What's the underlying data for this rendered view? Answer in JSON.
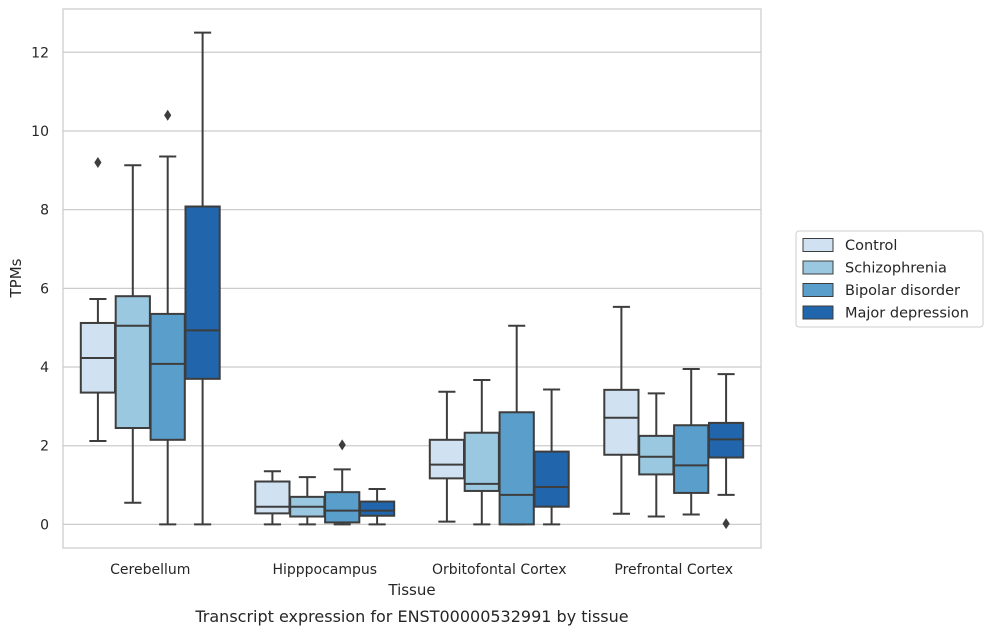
{
  "caption": "Transcript expression for ENST00000532991 by tissue",
  "chart_data": {
    "type": "boxplot",
    "xlabel": "Tissue",
    "ylabel": "TPMs",
    "ylim": [
      -0.6,
      13.1
    ],
    "yticks": [
      0,
      2,
      4,
      6,
      8,
      10,
      12
    ],
    "grid": "horizontal",
    "legend_position": "right",
    "categories": [
      "Cerebellum",
      "Hipppocampus",
      "Orbitofontal Cortex",
      "Prefrontal Cortex"
    ],
    "series": [
      {
        "name": "Control",
        "color": "#d0e1f2",
        "boxes": [
          {
            "whislo": 2.12,
            "q1": 3.35,
            "med": 4.23,
            "q3": 5.12,
            "whishi": 5.73,
            "fliers": [
              9.2
            ]
          },
          {
            "whislo": 0.0,
            "q1": 0.28,
            "med": 0.45,
            "q3": 1.09,
            "whishi": 1.35,
            "fliers": []
          },
          {
            "whislo": 0.07,
            "q1": 1.17,
            "med": 1.52,
            "q3": 2.15,
            "whishi": 3.37,
            "fliers": []
          },
          {
            "whislo": 0.27,
            "q1": 1.77,
            "med": 2.71,
            "q3": 3.42,
            "whishi": 5.53,
            "fliers": []
          }
        ]
      },
      {
        "name": "Schizophrenia",
        "color": "#9ac8e0",
        "boxes": [
          {
            "whislo": 0.55,
            "q1": 2.45,
            "med": 5.05,
            "q3": 5.8,
            "whishi": 9.13,
            "fliers": []
          },
          {
            "whislo": 0.0,
            "q1": 0.2,
            "med": 0.45,
            "q3": 0.7,
            "whishi": 1.2,
            "fliers": []
          },
          {
            "whislo": 0.0,
            "q1": 0.85,
            "med": 1.03,
            "q3": 2.33,
            "whishi": 3.67,
            "fliers": []
          },
          {
            "whislo": 0.2,
            "q1": 1.27,
            "med": 1.72,
            "q3": 2.25,
            "whishi": 3.33,
            "fliers": []
          }
        ]
      },
      {
        "name": "Bipolar disorder",
        "color": "#5a9ecc",
        "boxes": [
          {
            "whislo": 0.0,
            "q1": 2.15,
            "med": 4.08,
            "q3": 5.35,
            "whishi": 9.35,
            "fliers": [
              10.4
            ]
          },
          {
            "whislo": 0.0,
            "q1": 0.05,
            "med": 0.35,
            "q3": 0.82,
            "whishi": 1.4,
            "fliers": [
              2.02
            ]
          },
          {
            "whislo": 0.0,
            "q1": 0.0,
            "med": 0.75,
            "q3": 2.85,
            "whishi": 5.05,
            "fliers": []
          },
          {
            "whislo": 0.25,
            "q1": 0.8,
            "med": 1.5,
            "q3": 2.52,
            "whishi": 3.95,
            "fliers": []
          }
        ]
      },
      {
        "name": "Major depression",
        "color": "#2166ac",
        "boxes": [
          {
            "whislo": 0.0,
            "q1": 3.7,
            "med": 4.93,
            "q3": 8.08,
            "whishi": 12.5,
            "fliers": []
          },
          {
            "whislo": 0.0,
            "q1": 0.22,
            "med": 0.35,
            "q3": 0.58,
            "whishi": 0.9,
            "fliers": []
          },
          {
            "whislo": 0.0,
            "q1": 0.45,
            "med": 0.95,
            "q3": 1.85,
            "whishi": 3.43,
            "fliers": []
          },
          {
            "whislo": 0.75,
            "q1": 1.7,
            "med": 2.16,
            "q3": 2.58,
            "whishi": 3.82,
            "fliers": [
              0.02
            ]
          }
        ]
      }
    ]
  }
}
